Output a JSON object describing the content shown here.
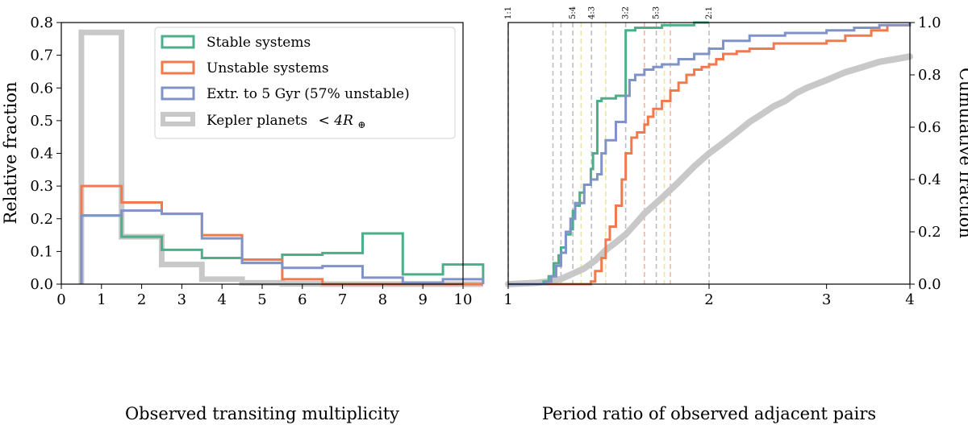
{
  "chart_data": [
    {
      "type": "histogram",
      "xlabel": "Observed transiting multiplicity",
      "ylabel": "Relative fraction",
      "xlim": [
        0,
        10
      ],
      "ylim": [
        0,
        0.8
      ],
      "xticks": [
        "0",
        "1",
        "2",
        "3",
        "4",
        "5",
        "6",
        "7",
        "8",
        "9",
        "10"
      ],
      "yticks": [
        "0.0",
        "0.1",
        "0.2",
        "0.3",
        "0.4",
        "0.5",
        "0.6",
        "0.7",
        "0.8"
      ],
      "bin_edges": [
        0.5,
        1.5,
        2.5,
        3.5,
        4.5,
        5.5,
        6.5,
        7.5,
        8.5,
        9.5,
        10.5
      ],
      "legend_position": "top-right",
      "series": [
        {
          "name": "Stable systems",
          "color": "#4daf8a",
          "values": [
            0.21,
            0.145,
            0.105,
            0.08,
            0.065,
            0.09,
            0.095,
            0.155,
            0.03,
            0.06
          ]
        },
        {
          "name": "Unstable systems",
          "color": "#f07a4e",
          "values": [
            0.3,
            0.25,
            0.215,
            0.15,
            0.075,
            0.015,
            0.0,
            0.0,
            0.0,
            0.0
          ]
        },
        {
          "name": "Extr. to 5 Gyr (57% unstable)",
          "color": "#8093c8",
          "values": [
            0.21,
            0.225,
            0.215,
            0.14,
            0.065,
            0.05,
            0.055,
            0.02,
            0.005,
            0.015
          ]
        },
        {
          "name": "Kepler planets $<4R_\\oplus$",
          "display_name": "Kepler planets",
          "math_suffix": "< 4R",
          "math_sub": "⊕",
          "color": "#c8c8c8",
          "values": [
            0.77,
            0.145,
            0.06,
            0.015,
            0.004,
            0.001,
            0,
            0,
            0,
            0
          ]
        }
      ]
    },
    {
      "type": "line",
      "subtype": "cumulative_step",
      "xlabel": "Period ratio of observed adjacent pairs",
      "ylabel": "Cumulative fraction",
      "xscale": "log",
      "xlim": [
        1,
        4
      ],
      "ylim": [
        0,
        1
      ],
      "xticks": [
        "1",
        "2",
        "3",
        "4"
      ],
      "yticks": [
        "0.0",
        "0.2",
        "0.4",
        "0.6",
        "0.8",
        "1.0"
      ],
      "resonances": [
        {
          "label": "1:1",
          "ratio": 1.0,
          "color": "#bdbdbd"
        },
        {
          "label": "5:4",
          "ratio": 1.25,
          "color": "#bdbdbd"
        },
        {
          "label": "4:3",
          "ratio": 1.333,
          "color": "#bdbdbd"
        },
        {
          "label": "3:2",
          "ratio": 1.5,
          "color": "#bdbdbd"
        },
        {
          "label": "5:3",
          "ratio": 1.667,
          "color": "#bdbdbd"
        },
        {
          "label": "2:1",
          "ratio": 2.0,
          "color": "#bdbdbd"
        },
        {
          "ratio": 1.2,
          "color": "#bdbdbd"
        },
        {
          "ratio": 1.4,
          "color": "#e8e6a0"
        },
        {
          "ratio": 1.6,
          "color": "#f4b6a8"
        },
        {
          "ratio": 1.75,
          "color": "#f4b6a8"
        },
        {
          "ratio": 1.167,
          "color": "#bdbdbd"
        },
        {
          "ratio": 1.286,
          "color": "#e8e6a0"
        },
        {
          "ratio": 1.714,
          "color": "#e8e6a0"
        }
      ],
      "series": [
        {
          "name": "Stable systems",
          "color": "#4daf8a",
          "x": [
            1.0,
            1.13,
            1.15,
            1.17,
            1.19,
            1.2,
            1.22,
            1.24,
            1.25,
            1.26,
            1.28,
            1.3,
            1.33,
            1.34,
            1.36,
            1.38,
            1.4,
            1.45,
            1.48,
            1.5,
            1.51,
            1.55,
            1.6,
            1.7,
            1.8,
            1.9,
            2.0
          ],
          "y": [
            0.0,
            0.01,
            0.03,
            0.08,
            0.11,
            0.14,
            0.19,
            0.21,
            0.28,
            0.3,
            0.35,
            0.38,
            0.44,
            0.5,
            0.7,
            0.71,
            0.71,
            0.72,
            0.72,
            0.97,
            0.97,
            0.98,
            0.98,
            0.99,
            0.99,
            1.0,
            1.0
          ]
        },
        {
          "name": "Unstable systems",
          "color": "#f07a4e",
          "x": [
            1.0,
            1.33,
            1.35,
            1.38,
            1.4,
            1.42,
            1.45,
            1.48,
            1.5,
            1.53,
            1.56,
            1.6,
            1.62,
            1.65,
            1.7,
            1.75,
            1.8,
            1.85,
            1.9,
            1.95,
            2.0,
            2.05,
            2.1,
            2.2,
            2.3,
            2.5,
            2.7,
            3.0,
            3.2,
            3.5,
            3.7,
            4.0
          ],
          "y": [
            0.0,
            0.01,
            0.05,
            0.1,
            0.17,
            0.22,
            0.3,
            0.4,
            0.5,
            0.56,
            0.58,
            0.61,
            0.64,
            0.67,
            0.7,
            0.74,
            0.77,
            0.8,
            0.82,
            0.83,
            0.84,
            0.86,
            0.88,
            0.89,
            0.9,
            0.92,
            0.92,
            0.93,
            0.95,
            0.97,
            0.99,
            0.99
          ]
        },
        {
          "name": "Extr. to 5 Gyr (57% unstable)",
          "color": "#8093c8",
          "x": [
            1.0,
            1.14,
            1.16,
            1.18,
            1.2,
            1.22,
            1.24,
            1.26,
            1.3,
            1.33,
            1.36,
            1.38,
            1.4,
            1.45,
            1.5,
            1.52,
            1.55,
            1.6,
            1.65,
            1.7,
            1.8,
            1.9,
            2.0,
            2.1,
            2.3,
            2.6,
            3.0,
            3.3,
            3.6,
            4.0
          ],
          "y": [
            0.0,
            0.01,
            0.03,
            0.07,
            0.12,
            0.2,
            0.25,
            0.31,
            0.38,
            0.4,
            0.42,
            0.5,
            0.55,
            0.62,
            0.72,
            0.78,
            0.8,
            0.82,
            0.83,
            0.84,
            0.86,
            0.88,
            0.9,
            0.93,
            0.95,
            0.96,
            0.97,
            0.98,
            0.99,
            1.0
          ]
        },
        {
          "name": "Kepler planets",
          "color": "#c8c8c8",
          "x": [
            1.0,
            1.1,
            1.15,
            1.2,
            1.25,
            1.3,
            1.35,
            1.4,
            1.45,
            1.5,
            1.55,
            1.6,
            1.7,
            1.8,
            1.9,
            2.0,
            2.1,
            2.2,
            2.3,
            2.4,
            2.5,
            2.6,
            2.7,
            2.8,
            3.0,
            3.2,
            3.4,
            3.6,
            3.8,
            4.0
          ],
          "y": [
            0.0,
            0.005,
            0.01,
            0.02,
            0.04,
            0.06,
            0.09,
            0.13,
            0.16,
            0.19,
            0.23,
            0.27,
            0.33,
            0.39,
            0.45,
            0.5,
            0.54,
            0.58,
            0.62,
            0.65,
            0.68,
            0.7,
            0.73,
            0.75,
            0.78,
            0.81,
            0.83,
            0.85,
            0.86,
            0.87
          ]
        }
      ]
    }
  ]
}
